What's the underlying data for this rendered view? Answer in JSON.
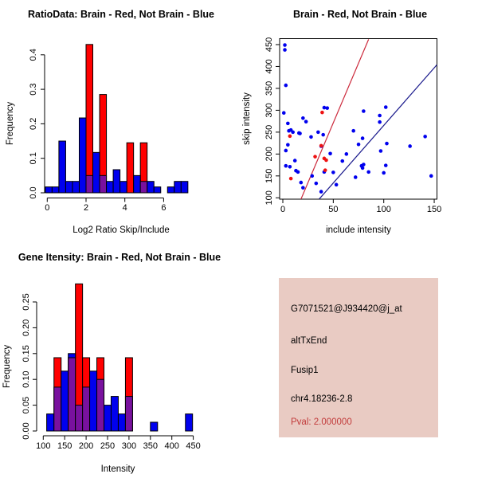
{
  "colors": {
    "bar_blue": "#0000EE",
    "bar_red": "#FF0000",
    "bar_overlap": "#79119E",
    "bar_stroke": "#000000",
    "point_blue": "#0000EE",
    "point_red": "#EE1111",
    "line_red": "#CC2A3C",
    "line_blue": "#1A1A8C",
    "axis": "#000000",
    "pval_text": "#C23B3B",
    "info_bg": "#E9CBC3"
  },
  "chart_data": [
    {
      "id": "hist_ratio",
      "type": "bar",
      "title": "RatioData: Brain - Red, Not Brain - Blue",
      "xlabel": "Log2 Ratio Skip/Include",
      "ylabel": "Frequency",
      "xlim": [
        -0.2,
        7.5
      ],
      "ylim": [
        0,
        0.44
      ],
      "xtick_values": [
        0,
        2,
        4,
        6
      ],
      "xtick_labels": [
        "0",
        "2",
        "4",
        "6"
      ],
      "ytick_values": [
        0.0,
        0.1,
        0.2,
        0.3,
        0.4
      ],
      "ytick_labels": [
        "0.0",
        "0.1",
        "0.2",
        "0.3",
        "0.4"
      ],
      "grid": false,
      "legend_note": "Brain - Red, Not Brain - Blue",
      "series": [
        {
          "name": "Not Brain (blue)",
          "color_key": "bar_blue",
          "bars": [
            [
              -0.1,
              0.25,
              0.017
            ],
            [
              0.25,
              0.6,
              0.017
            ],
            [
              0.6,
              0.95,
              0.15
            ],
            [
              0.95,
              1.3,
              0.033
            ],
            [
              1.3,
              1.65,
              0.033
            ],
            [
              1.65,
              2.0,
              0.217
            ],
            [
              2.0,
              2.35,
              0.05
            ],
            [
              2.35,
              2.7,
              0.117
            ],
            [
              2.7,
              3.05,
              0.05
            ],
            [
              3.05,
              3.4,
              0.033
            ],
            [
              3.4,
              3.75,
              0.067
            ],
            [
              3.75,
              4.1,
              0.033
            ],
            [
              4.45,
              4.8,
              0.05
            ],
            [
              4.8,
              5.15,
              0.033
            ],
            [
              5.15,
              5.5,
              0.033
            ],
            [
              5.5,
              5.85,
              0.017
            ],
            [
              6.2,
              6.55,
              0.017
            ],
            [
              6.55,
              6.9,
              0.033
            ],
            [
              6.9,
              7.25,
              0.033
            ]
          ]
        },
        {
          "name": "Brain (red)",
          "color_key": "bar_red",
          "bars": [
            [
              2.0,
              2.35,
              0.43
            ],
            [
              2.7,
              3.05,
              0.285
            ],
            [
              4.1,
              4.45,
              0.145
            ],
            [
              4.8,
              5.15,
              0.145
            ]
          ]
        }
      ]
    },
    {
      "id": "scatter_skip_include",
      "type": "scatter",
      "title": "Brain - Red, Not Brain - Blue",
      "xlabel": "include intensity",
      "ylabel": "skip intensity",
      "xlim": [
        -3,
        153
      ],
      "ylim": [
        96,
        464
      ],
      "xtick_values": [
        0,
        50,
        100,
        150
      ],
      "xtick_labels": [
        "0",
        "50",
        "100",
        "150"
      ],
      "ytick_values": [
        100,
        150,
        200,
        250,
        300,
        350,
        400,
        450
      ],
      "ytick_labels": [
        "100",
        "150",
        "200",
        "250",
        "300",
        "350",
        "400",
        "450"
      ],
      "grid": false,
      "box": true,
      "series": [
        {
          "name": "Not Brain (blue)",
          "color_key": "point_blue",
          "points": [
            [
              2,
              449
            ],
            [
              2,
              438
            ],
            [
              3,
              357
            ],
            [
              1,
              294
            ],
            [
              5,
              270
            ],
            [
              20,
              282
            ],
            [
              23,
              274
            ],
            [
              6,
              253
            ],
            [
              8,
              255
            ],
            [
              17,
              247
            ],
            [
              35,
              250
            ],
            [
              40,
              244
            ],
            [
              28,
              239
            ],
            [
              3,
              208
            ],
            [
              12,
              185
            ],
            [
              3,
              173
            ],
            [
              7,
              171
            ],
            [
              13,
              162
            ],
            [
              15,
              159
            ],
            [
              18,
              135
            ],
            [
              20,
              123
            ],
            [
              10,
              250
            ],
            [
              16,
              248
            ],
            [
              5,
              221
            ],
            [
              29,
              150
            ],
            [
              33,
              133
            ],
            [
              38,
              114
            ],
            [
              41,
              159
            ],
            [
              41,
              306
            ],
            [
              44,
              305
            ],
            [
              38,
              218
            ],
            [
              47,
              201
            ],
            [
              50,
              158
            ],
            [
              53,
              130
            ],
            [
              59,
              184
            ],
            [
              63,
              200
            ],
            [
              70,
              253
            ],
            [
              72,
              147
            ],
            [
              75,
              222
            ],
            [
              79,
              236
            ],
            [
              78,
              173
            ],
            [
              79,
              168
            ],
            [
              80,
              176
            ],
            [
              80,
              298
            ],
            [
              85,
              159
            ],
            [
              96,
              273
            ],
            [
              96,
              288
            ],
            [
              102,
              307
            ],
            [
              97,
              207
            ],
            [
              103,
              224
            ],
            [
              100,
              157
            ],
            [
              102,
              174
            ],
            [
              126,
              218
            ],
            [
              141,
              240
            ],
            [
              147,
              150
            ]
          ]
        },
        {
          "name": "Brain (red)",
          "color_key": "point_red",
          "points": [
            [
              7,
              241
            ],
            [
              8,
              144
            ],
            [
              39,
              295
            ],
            [
              32,
              194
            ],
            [
              41,
              190
            ],
            [
              43,
              186
            ],
            [
              42,
              163
            ],
            [
              38,
              219
            ]
          ]
        }
      ],
      "lines": [
        {
          "name": "brain fit",
          "color_key": "line_red",
          "x1": 18,
          "y1": 97,
          "x2": 85,
          "y2": 462
        },
        {
          "name": "not-brain fit",
          "color_key": "line_blue",
          "x1": 36,
          "y1": 97,
          "x2": 152.7,
          "y2": 404
        }
      ]
    },
    {
      "id": "hist_gene",
      "type": "bar",
      "title": "Gene Itensity: Brain - Red, Not Brain - Blue",
      "xlabel": "Intensity",
      "ylabel": "Frequency",
      "xlim": [
        100,
        455
      ],
      "ylim": [
        0,
        0.29
      ],
      "xtick_values": [
        100,
        150,
        200,
        250,
        300,
        350,
        400,
        450
      ],
      "xtick_labels": [
        "100",
        "150",
        "200",
        "250",
        "300",
        "350",
        "400",
        "450"
      ],
      "ytick_values": [
        0.0,
        0.05,
        0.1,
        0.15,
        0.2,
        0.25
      ],
      "ytick_labels": [
        "0.00",
        "0.05",
        "0.10",
        "0.15",
        "0.20",
        "0.25"
      ],
      "grid": false,
      "legend_note": "Brain - Red, Not Brain - Blue",
      "series": [
        {
          "name": "Not Brain (blue)",
          "color_key": "bar_blue",
          "bars": [
            [
              108,
              125,
              0.033
            ],
            [
              125,
              141.7,
              0.085
            ],
            [
              141.7,
              158.3,
              0.116
            ],
            [
              158.3,
              175,
              0.15
            ],
            [
              175,
              191.7,
              0.05
            ],
            [
              191.7,
              208.3,
              0.085
            ],
            [
              208.3,
              225,
              0.116
            ],
            [
              225,
              241.7,
              0.1
            ],
            [
              241.7,
              258.3,
              0.05
            ],
            [
              258.3,
              275,
              0.067
            ],
            [
              275,
              291.7,
              0.033
            ],
            [
              291.7,
              308.3,
              0.067
            ],
            [
              350,
              366.7,
              0.017
            ],
            [
              431.7,
              448.3,
              0.033
            ]
          ]
        },
        {
          "name": "Brain (red)",
          "color_key": "bar_red",
          "bars": [
            [
              125,
              141.7,
              0.142
            ],
            [
              158.3,
              175,
              0.142
            ],
            [
              175,
              191.7,
              0.285
            ],
            [
              191.7,
              208.3,
              0.142
            ],
            [
              225,
              241.7,
              0.142
            ],
            [
              291.7,
              308.3,
              0.142
            ]
          ]
        }
      ]
    }
  ],
  "info_box": {
    "probe_id": "G7071521@J934420@j_at",
    "event_type": "altTxEnd",
    "gene": "Fusip1",
    "locus": "chr4.18236-2.8",
    "pval_label": "Pval: 2.000000"
  }
}
